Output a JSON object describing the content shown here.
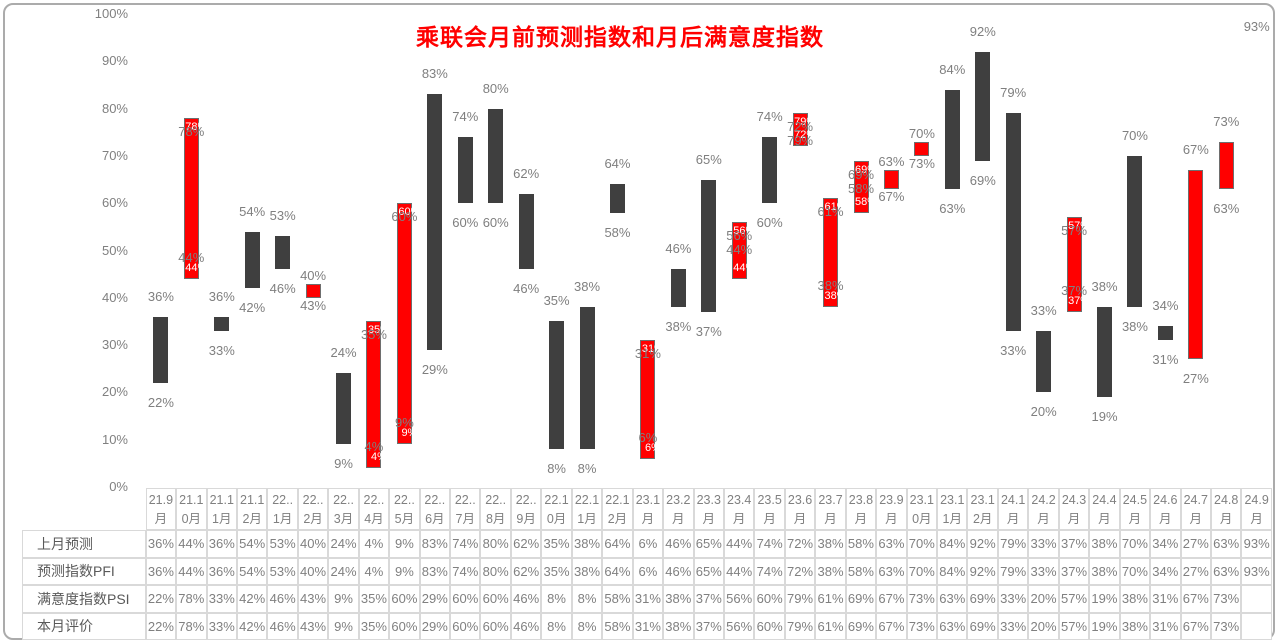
{
  "chart_data": {
    "type": "bar",
    "subtype": "floating-range-bar",
    "title": "乘联会月前预测指数和月后满意度指数",
    "xlabel": "",
    "ylabel": "",
    "ylim": [
      0,
      100
    ],
    "ytick_labels": [
      "100%",
      "90%",
      "80%",
      "70%",
      "60%",
      "50%",
      "40%",
      "30%",
      "20%",
      "10%",
      "0%"
    ],
    "grid": "off",
    "legend": "none",
    "colors": {
      "title": "#ff0000",
      "up_bar": "#ff0000",
      "down_bar": "#3f3f3f",
      "bar_border": "#6e6e6e",
      "label": "#7f7f7f",
      "white_label": "#ffffff",
      "axis_text": "#808080",
      "table_value_text": "#808080",
      "table_header_text": "#595959",
      "cell_border": "#d9d9d9",
      "frame": "#ababab"
    },
    "series": [
      {
        "name": "预测指数PFI",
        "values": [
          36,
          44,
          36,
          54,
          53,
          40,
          24,
          4,
          9,
          83,
          74,
          80,
          62,
          35,
          38,
          64,
          6,
          46,
          65,
          44,
          74,
          72,
          38,
          58,
          63,
          70,
          84,
          92,
          79,
          33,
          37,
          38,
          70,
          34,
          27,
          63,
          93
        ]
      },
      {
        "name": "满意度指数PSI",
        "values": [
          22,
          78,
          33,
          42,
          46,
          43,
          9,
          35,
          60,
          29,
          60,
          60,
          46,
          8,
          8,
          58,
          31,
          38,
          37,
          56,
          60,
          79,
          61,
          69,
          67,
          73,
          63,
          69,
          33,
          20,
          57,
          19,
          38,
          31,
          67,
          73,
          null
        ]
      }
    ],
    "months": [
      {
        "m": "21.9月",
        "l1": "21.9",
        "l2": "月",
        "pfi": 36,
        "psi": 22,
        "dir": "down",
        "labels": [
          {
            "t": "36%",
            "p": "above"
          },
          {
            "t": "22%",
            "p": "below"
          }
        ],
        "white": []
      },
      {
        "m": "21.10月",
        "l1": "21.1",
        "l2": "0月",
        "pfi": 44,
        "psi": 78,
        "dir": "up",
        "labels": [
          {
            "t": "78%",
            "p": "intop"
          },
          {
            "t": "44%",
            "p": "inbot"
          }
        ],
        "white": [
          {
            "t": "78%",
            "p": "wtop"
          },
          {
            "t": "44%",
            "p": "wbot"
          }
        ]
      },
      {
        "m": "21.11月",
        "l1": "21.1",
        "l2": "1月",
        "pfi": 36,
        "psi": 33,
        "dir": "down",
        "labels": [
          {
            "t": "36%",
            "p": "above"
          },
          {
            "t": "33%",
            "p": "below"
          }
        ],
        "white": []
      },
      {
        "m": "21.12月",
        "l1": "21.1",
        "l2": "2月",
        "pfi": 54,
        "psi": 42,
        "dir": "down",
        "labels": [
          {
            "t": "54%",
            "p": "above"
          },
          {
            "t": "42%",
            "p": "below"
          }
        ],
        "white": []
      },
      {
        "m": "22.1月",
        "l1": "22..",
        "l2": "1月",
        "pfi": 53,
        "psi": 46,
        "dir": "down",
        "labels": [
          {
            "t": "53%",
            "p": "above"
          },
          {
            "t": "46%",
            "p": "below"
          }
        ],
        "white": []
      },
      {
        "m": "22.2月",
        "l1": "22..",
        "l2": "2月",
        "pfi": 40,
        "psi": 43,
        "dir": "up",
        "labels": [
          {
            "t": "40%",
            "p": "nabove"
          },
          {
            "t": "43%",
            "p": "nbelow"
          }
        ],
        "white": []
      },
      {
        "m": "22.3月",
        "l1": "22..",
        "l2": "3月",
        "pfi": 24,
        "psi": 9,
        "dir": "down",
        "labels": [
          {
            "t": "24%",
            "p": "above"
          },
          {
            "t": "9%",
            "p": "below"
          }
        ],
        "white": []
      },
      {
        "m": "22.4月",
        "l1": "22..",
        "l2": "4月",
        "pfi": 4,
        "psi": 35,
        "dir": "up",
        "labels": [
          {
            "t": "35%",
            "p": "intop"
          },
          {
            "t": "4%",
            "p": "inbot"
          }
        ],
        "white": [
          {
            "t": "35%",
            "p": "wtop"
          },
          {
            "t": "4%",
            "p": "wbot"
          }
        ]
      },
      {
        "m": "22.5月",
        "l1": "22..",
        "l2": "5月",
        "pfi": 9,
        "psi": 60,
        "dir": "up",
        "labels": [
          {
            "t": "60%",
            "p": "intop"
          },
          {
            "t": "9%",
            "p": "inbot"
          }
        ],
        "white": [
          {
            "t": "60%",
            "p": "wtop"
          },
          {
            "t": "9%",
            "p": "wbot"
          }
        ]
      },
      {
        "m": "22.6月",
        "l1": "22..",
        "l2": "6月",
        "pfi": 83,
        "psi": 29,
        "dir": "down",
        "labels": [
          {
            "t": "83%",
            "p": "above"
          },
          {
            "t": "29%",
            "p": "below"
          }
        ],
        "white": []
      },
      {
        "m": "22.7月",
        "l1": "22..",
        "l2": "7月",
        "pfi": 74,
        "psi": 60,
        "dir": "down",
        "labels": [
          {
            "t": "74%",
            "p": "above"
          },
          {
            "t": "60%",
            "p": "below"
          }
        ],
        "white": []
      },
      {
        "m": "22.8月",
        "l1": "22..",
        "l2": "8月",
        "pfi": 80,
        "psi": 60,
        "dir": "down",
        "labels": [
          {
            "t": "80%",
            "p": "above"
          },
          {
            "t": "60%",
            "p": "below"
          }
        ],
        "white": []
      },
      {
        "m": "22.9月",
        "l1": "22..",
        "l2": "9月",
        "pfi": 62,
        "psi": 46,
        "dir": "down",
        "labels": [
          {
            "t": "62%",
            "p": "above"
          },
          {
            "t": "46%",
            "p": "below"
          }
        ],
        "white": []
      },
      {
        "m": "22.10月",
        "l1": "22.1",
        "l2": "0月",
        "pfi": 35,
        "psi": 8,
        "dir": "down",
        "labels": [
          {
            "t": "35%",
            "p": "above"
          },
          {
            "t": "8%",
            "p": "below"
          }
        ],
        "white": []
      },
      {
        "m": "22.11月",
        "l1": "22.1",
        "l2": "1月",
        "pfi": 38,
        "psi": 8,
        "dir": "down",
        "labels": [
          {
            "t": "38%",
            "p": "above"
          },
          {
            "t": "8%",
            "p": "below"
          }
        ],
        "white": []
      },
      {
        "m": "22.12月",
        "l1": "22.1",
        "l2": "2月",
        "pfi": 64,
        "psi": 58,
        "dir": "down",
        "labels": [
          {
            "t": "64%",
            "p": "above"
          },
          {
            "t": "58%",
            "p": "below"
          }
        ],
        "white": []
      },
      {
        "m": "23.1月",
        "l1": "23.1",
        "l2": "月",
        "pfi": 6,
        "psi": 31,
        "dir": "up",
        "labels": [
          {
            "t": "31%",
            "p": "intop"
          },
          {
            "t": "6%",
            "p": "inbot"
          }
        ],
        "white": [
          {
            "t": "31%",
            "p": "wtop"
          },
          {
            "t": "6%",
            "p": "wbot"
          }
        ]
      },
      {
        "m": "23.2月",
        "l1": "23.2",
        "l2": "月",
        "pfi": 46,
        "psi": 38,
        "dir": "down",
        "labels": [
          {
            "t": "46%",
            "p": "above"
          },
          {
            "t": "38%",
            "p": "below"
          }
        ],
        "white": []
      },
      {
        "m": "23.3月",
        "l1": "23.3",
        "l2": "月",
        "pfi": 65,
        "psi": 37,
        "dir": "down",
        "labels": [
          {
            "t": "65%",
            "p": "above"
          },
          {
            "t": "37%",
            "p": "below"
          }
        ],
        "white": []
      },
      {
        "m": "23.4月",
        "l1": "23.4",
        "l2": "月",
        "pfi": 44,
        "psi": 56,
        "dir": "up",
        "labels": [
          {
            "t": "56%",
            "p": "intop"
          },
          {
            "t": "44%",
            "p": "in2"
          }
        ],
        "white": [
          {
            "t": "56%",
            "p": "wtop"
          },
          {
            "t": "44%",
            "p": "wbot"
          }
        ]
      },
      {
        "m": "23.5月",
        "l1": "23.5",
        "l2": "月",
        "pfi": 74,
        "psi": 60,
        "dir": "down",
        "labels": [
          {
            "t": "74%",
            "p": "above"
          },
          {
            "t": "60%",
            "p": "below"
          }
        ],
        "white": []
      },
      {
        "m": "23.6月",
        "l1": "23.6",
        "l2": "月",
        "pfi": 72,
        "psi": 79,
        "dir": "up",
        "labels": [
          {
            "t": "72%",
            "p": "intop"
          },
          {
            "t": "79%",
            "p": "in2"
          }
        ],
        "white": [
          {
            "t": "79%",
            "p": "wtop"
          },
          {
            "t": "72%",
            "p": "wbot"
          }
        ]
      },
      {
        "m": "23.7月",
        "l1": "23.7",
        "l2": "月",
        "pfi": 38,
        "psi": 61,
        "dir": "up",
        "labels": [
          {
            "t": "61%",
            "p": "intop"
          },
          {
            "t": "38%",
            "p": "inbot"
          }
        ],
        "white": [
          {
            "t": "61%",
            "p": "wtop"
          },
          {
            "t": "38%",
            "p": "wbot"
          }
        ]
      },
      {
        "m": "23.8月",
        "l1": "23.8",
        "l2": "月",
        "pfi": 58,
        "psi": 69,
        "dir": "up",
        "labels": [
          {
            "t": "69%",
            "p": "intop"
          },
          {
            "t": "58%",
            "p": "in2"
          }
        ],
        "white": [
          {
            "t": "69%",
            "p": "wtop"
          },
          {
            "t": "58%",
            "p": "wbot"
          }
        ]
      },
      {
        "m": "23.9月",
        "l1": "23.9",
        "l2": "月",
        "pfi": 63,
        "psi": 67,
        "dir": "up",
        "labels": [
          {
            "t": "63%",
            "p": "nabove"
          },
          {
            "t": "67%",
            "p": "nbelow"
          }
        ],
        "white": []
      },
      {
        "m": "23.10月",
        "l1": "23.1",
        "l2": "0月",
        "pfi": 70,
        "psi": 73,
        "dir": "up",
        "labels": [
          {
            "t": "70%",
            "p": "nabove"
          },
          {
            "t": "73%",
            "p": "nbelow"
          }
        ],
        "white": []
      },
      {
        "m": "23.11月",
        "l1": "23.1",
        "l2": "1月",
        "pfi": 84,
        "psi": 63,
        "dir": "down",
        "labels": [
          {
            "t": "84%",
            "p": "above"
          },
          {
            "t": "63%",
            "p": "below"
          }
        ],
        "white": []
      },
      {
        "m": "23.12月",
        "l1": "23.1",
        "l2": "2月",
        "pfi": 92,
        "psi": 69,
        "dir": "down",
        "labels": [
          {
            "t": "92%",
            "p": "above"
          },
          {
            "t": "69%",
            "p": "below"
          }
        ],
        "white": []
      },
      {
        "m": "24.1月",
        "l1": "24.1",
        "l2": "月",
        "pfi": 79,
        "psi": 33,
        "dir": "down",
        "labels": [
          {
            "t": "79%",
            "p": "above"
          },
          {
            "t": "33%",
            "p": "below"
          }
        ],
        "white": []
      },
      {
        "m": "24.2月",
        "l1": "24.2",
        "l2": "月",
        "pfi": 33,
        "psi": 20,
        "dir": "down",
        "labels": [
          {
            "t": "33%",
            "p": "above"
          },
          {
            "t": "20%",
            "p": "below"
          }
        ],
        "white": []
      },
      {
        "m": "24.3月",
        "l1": "24.3",
        "l2": "月",
        "pfi": 37,
        "psi": 57,
        "dir": "up",
        "labels": [
          {
            "t": "57%",
            "p": "intop"
          },
          {
            "t": "37%",
            "p": "inbot"
          }
        ],
        "white": [
          {
            "t": "57%",
            "p": "wtop"
          },
          {
            "t": "37%",
            "p": "wbot"
          }
        ]
      },
      {
        "m": "24.4月",
        "l1": "24.4",
        "l2": "月",
        "pfi": 38,
        "psi": 19,
        "dir": "down",
        "labels": [
          {
            "t": "38%",
            "p": "above"
          },
          {
            "t": "19%",
            "p": "below"
          }
        ],
        "white": []
      },
      {
        "m": "24.5月",
        "l1": "24.5",
        "l2": "月",
        "pfi": 70,
        "psi": 38,
        "dir": "down",
        "labels": [
          {
            "t": "70%",
            "p": "above"
          },
          {
            "t": "38%",
            "p": "below"
          }
        ],
        "white": []
      },
      {
        "m": "24.6月",
        "l1": "24.6",
        "l2": "月",
        "pfi": 34,
        "psi": 31,
        "dir": "down",
        "labels": [
          {
            "t": "34%",
            "p": "above"
          },
          {
            "t": "31%",
            "p": "below"
          }
        ],
        "white": []
      },
      {
        "m": "24.7月",
        "l1": "24.7",
        "l2": "月",
        "pfi": 27,
        "psi": 67,
        "dir": "up",
        "labels": [
          {
            "t": "67%",
            "p": "above"
          },
          {
            "t": "27%",
            "p": "below"
          }
        ],
        "white": []
      },
      {
        "m": "24.8月",
        "l1": "24.8",
        "l2": "月",
        "pfi": 63,
        "psi": 73,
        "dir": "up",
        "labels": [
          {
            "t": "73%",
            "p": "above"
          },
          {
            "t": "63%",
            "p": "below"
          }
        ],
        "white": []
      },
      {
        "m": "24.9月",
        "l1": "24.9",
        "l2": "月",
        "pfi": 93,
        "psi": null,
        "dir": "none",
        "labels": [
          {
            "t": "93%",
            "p": "above"
          }
        ],
        "white": []
      }
    ]
  },
  "table": {
    "rows": [
      {
        "header": "上月预测",
        "field": "pfi"
      },
      {
        "header": "预测指数PFI",
        "field": "pfi"
      },
      {
        "header": "满意度指数PSI",
        "field": "psi"
      },
      {
        "header": "本月评价",
        "field": "psi"
      }
    ]
  }
}
